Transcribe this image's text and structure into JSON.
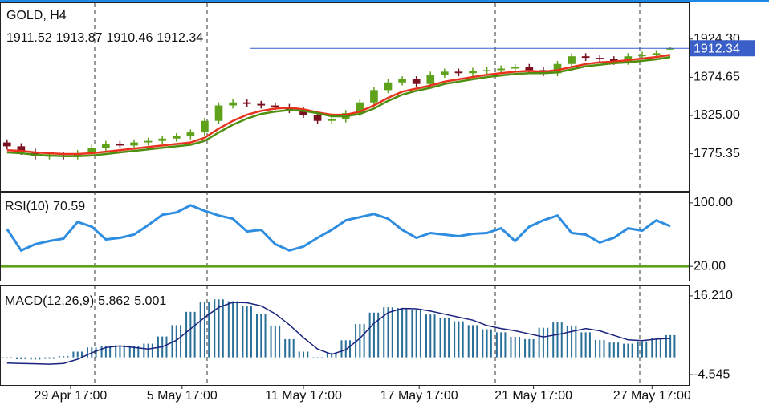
{
  "chart_data": [
    {
      "type": "candlestick",
      "title": "GOLD, H4",
      "open": [
        1790,
        1785,
        1778,
        1772,
        1773,
        1772,
        1776,
        1783,
        1788,
        1786,
        1790,
        1792,
        1795,
        1798,
        1803,
        1818,
        1838,
        1842,
        1840,
        1838,
        1836,
        1832,
        1826,
        1818,
        1820,
        1828,
        1842,
        1858,
        1868,
        1872,
        1866,
        1878,
        1882,
        1880,
        1883,
        1884,
        1886,
        1888,
        1884,
        1880,
        1892,
        1902,
        1900,
        1898,
        1895,
        1902,
        1904,
        1911.52
      ],
      "high": [
        1794,
        1789,
        1782,
        1777,
        1777,
        1780,
        1787,
        1792,
        1792,
        1794,
        1796,
        1799,
        1802,
        1807,
        1822,
        1842,
        1846,
        1846,
        1844,
        1842,
        1840,
        1836,
        1830,
        1824,
        1832,
        1846,
        1862,
        1872,
        1876,
        1876,
        1882,
        1886,
        1886,
        1887,
        1888,
        1890,
        1892,
        1892,
        1888,
        1896,
        1906,
        1906,
        1904,
        1902,
        1906,
        1908,
        1910,
        1913.87
      ],
      "low": [
        1781,
        1774,
        1768,
        1768,
        1768,
        1768,
        1772,
        1779,
        1782,
        1782,
        1786,
        1788,
        1791,
        1794,
        1799,
        1814,
        1834,
        1836,
        1834,
        1832,
        1828,
        1822,
        1814,
        1814,
        1816,
        1824,
        1838,
        1854,
        1864,
        1862,
        1862,
        1874,
        1876,
        1876,
        1879,
        1880,
        1882,
        1880,
        1876,
        1876,
        1888,
        1896,
        1894,
        1891,
        1891,
        1898,
        1900,
        1910.46
      ],
      "close": [
        1785,
        1778,
        1772,
        1773,
        1772,
        1776,
        1783,
        1788,
        1786,
        1790,
        1792,
        1795,
        1798,
        1803,
        1818,
        1838,
        1842,
        1840,
        1838,
        1836,
        1832,
        1826,
        1818,
        1820,
        1828,
        1842,
        1858,
        1868,
        1872,
        1866,
        1878,
        1882,
        1880,
        1883,
        1884,
        1886,
        1888,
        1884,
        1880,
        1892,
        1902,
        1900,
        1898,
        1895,
        1902,
        1904,
        1906,
        1912.34
      ],
      "up_color": "#5ea21c",
      "down_color": "#7a1020",
      "series": [
        {
          "color": "#e8321e",
          "values": [
            1780,
            1779,
            1777,
            1776,
            1775,
            1775,
            1776,
            1778,
            1780,
            1782,
            1784,
            1786,
            1788,
            1790,
            1796,
            1808,
            1818,
            1826,
            1831,
            1834,
            1835,
            1833,
            1829,
            1826,
            1826,
            1830,
            1838,
            1848,
            1856,
            1860,
            1864,
            1869,
            1872,
            1875,
            1878,
            1880,
            1882,
            1883,
            1882,
            1884,
            1888,
            1892,
            1894,
            1895,
            1897,
            1899,
            1901,
            1904
          ]
        },
        {
          "color": "#4f8f10",
          "values": [
            1777,
            1776,
            1774,
            1773,
            1772,
            1772,
            1773,
            1775,
            1777,
            1779,
            1781,
            1783,
            1785,
            1787,
            1792,
            1803,
            1813,
            1821,
            1827,
            1830,
            1832,
            1831,
            1828,
            1824,
            1824,
            1827,
            1834,
            1844,
            1852,
            1857,
            1861,
            1866,
            1869,
            1872,
            1875,
            1877,
            1879,
            1880,
            1880,
            1881,
            1885,
            1889,
            1891,
            1893,
            1894,
            1896,
            1898,
            1901
          ]
        }
      ],
      "price_color": "#3a5fc8",
      "xlim": [
        -0.5,
        48.3
      ],
      "ylim": [
        1727,
        1971
      ],
      "yticks": [
        1775.35,
        {
          "value": 1825,
          "label": "1825.00"
        },
        1874.65,
        {
          "value": 1924.3,
          "label": "1924.30"
        }
      ]
    },
    {
      "type": "line",
      "name": "RSI(10)",
      "color": "#2e8de0",
      "level_color": "#5ea21c",
      "values": [
        67,
        40,
        48,
        52,
        55,
        76,
        70,
        54,
        56,
        60,
        72,
        85,
        88,
        97,
        90,
        84,
        80,
        64,
        66,
        48,
        40,
        45,
        56,
        66,
        78,
        82,
        86,
        80,
        66,
        56,
        62,
        60,
        58,
        61,
        62,
        68,
        52,
        70,
        78,
        84,
        62,
        60,
        50,
        56,
        68,
        65,
        78,
        70.59
      ],
      "xlim": [
        -0.5,
        48.3
      ],
      "ylim": [
        2,
        112
      ],
      "yticks": [
        {
          "value": 20,
          "label": "20.00"
        },
        {
          "value": 100,
          "label": "100.00"
        }
      ]
    },
    {
      "type": "macd",
      "name": "MACD(12,26,9)",
      "color": "#2a6f97",
      "values": [
        -0.3,
        -0.5,
        -0.6,
        -0.4,
        0.3,
        1.5,
        2.6,
        3.0,
        3.2,
        3.0,
        3.6,
        5.5,
        8.5,
        12.0,
        14.6,
        15.3,
        14.8,
        13.6,
        11.5,
        8.4,
        4.8,
        1.5,
        -0.3,
        1.2,
        4.5,
        8.8,
        11.8,
        13.2,
        13.0,
        12.4,
        11.3,
        10.5,
        9.5,
        8.5,
        7.4,
        6.6,
        5.4,
        4.8,
        7.8,
        9.2,
        8.4,
        6.6,
        4.6,
        3.9,
        3.6,
        4.2,
        5.2,
        5.862
      ],
      "series": [
        {
          "color": "#1a237e",
          "values": [
            -1.5,
            -1.6,
            -1.7,
            -1.8,
            -1.6,
            -0.5,
            1.2,
            2.6,
            3.0,
            2.6,
            2.2,
            2.8,
            4.5,
            7.5,
            10.5,
            13.2,
            14.5,
            14.4,
            13.6,
            11.5,
            8.6,
            5.2,
            2.2,
            0.8,
            2.0,
            5.0,
            9.0,
            11.8,
            12.9,
            12.8,
            12.2,
            11.4,
            10.6,
            9.8,
            8.4,
            7.6,
            7.0,
            6.2,
            5.4,
            6.0,
            6.8,
            7.6,
            7.0,
            5.8,
            4.6,
            4.4,
            4.8,
            5.001
          ]
        }
      ],
      "xlim": [
        -0.5,
        48.3
      ],
      "ylim": [
        -7.27,
        18.94
      ],
      "yticks": [
        -4.545,
        {
          "value": 16.21,
          "label": "16.210"
        }
      ],
      "xticks": [
        {
          "value": 4.5,
          "label": "29 Apr 17:00"
        },
        {
          "value": 12.4,
          "label": "5 May 17:00"
        },
        {
          "value": 21,
          "label": "11 May 17:00"
        },
        {
          "value": 29.2,
          "label": "17 May 17:00"
        },
        {
          "value": 37.3,
          "label": "21 May 17:00"
        },
        {
          "value": 45.7,
          "label": "27 May 17:00"
        }
      ]
    }
  ]
}
